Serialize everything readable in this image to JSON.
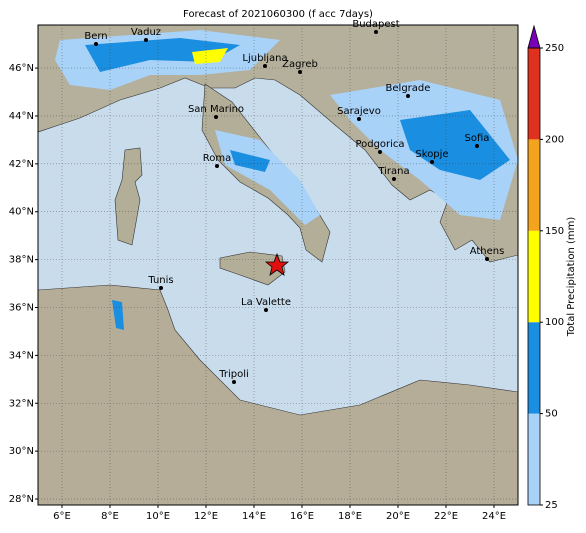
{
  "chart_data": {
    "type": "map",
    "title": "Forecast of 2021060300 (f acc 7days)",
    "xlim": [
      5,
      25
    ],
    "ylim": [
      27.75,
      47.8
    ],
    "xticks": [
      {
        "value": 6,
        "label": "6°E"
      },
      {
        "value": 8,
        "label": "8°E"
      },
      {
        "value": 10,
        "label": "10°E"
      },
      {
        "value": 12,
        "label": "12°E"
      },
      {
        "value": 14,
        "label": "14°E"
      },
      {
        "value": 16,
        "label": "16°E"
      },
      {
        "value": 18,
        "label": "18°E"
      },
      {
        "value": 20,
        "label": "20°E"
      },
      {
        "value": 22,
        "label": "22°E"
      },
      {
        "value": 24,
        "label": "24°E"
      }
    ],
    "yticks": [
      {
        "value": 28,
        "label": "28°N"
      },
      {
        "value": 30,
        "label": "30°N"
      },
      {
        "value": 32,
        "label": "32°N"
      },
      {
        "value": 34,
        "label": "34°N"
      },
      {
        "value": 36,
        "label": "36°N"
      },
      {
        "value": 38,
        "label": "38°N"
      },
      {
        "value": 40,
        "label": "40°N"
      },
      {
        "value": 42,
        "label": "42°N"
      },
      {
        "value": 44,
        "label": "44°N"
      },
      {
        "value": 46,
        "label": "46°N"
      }
    ],
    "grid": true,
    "cities": [
      "Bern",
      "Vaduz",
      "Budapest",
      "Ljubljana",
      "Zagreb",
      "Belgrade",
      "San Marino",
      "Sarajevo",
      "Sofia",
      "Podgorica",
      "Skopje",
      "Roma",
      "Tirana",
      "Athens",
      "Tunis",
      "La Valette",
      "Tripoli"
    ],
    "colorbar": {
      "label": "Total Precipitation (mm)",
      "boundaries": [
        25,
        50,
        100,
        150,
        200,
        250
      ],
      "colors": [
        "#a9d2f8",
        "#1a8ee0",
        "#ffff00",
        "#f4a41c",
        "#e0301e"
      ],
      "extend_color": "#7a00b8"
    }
  }
}
